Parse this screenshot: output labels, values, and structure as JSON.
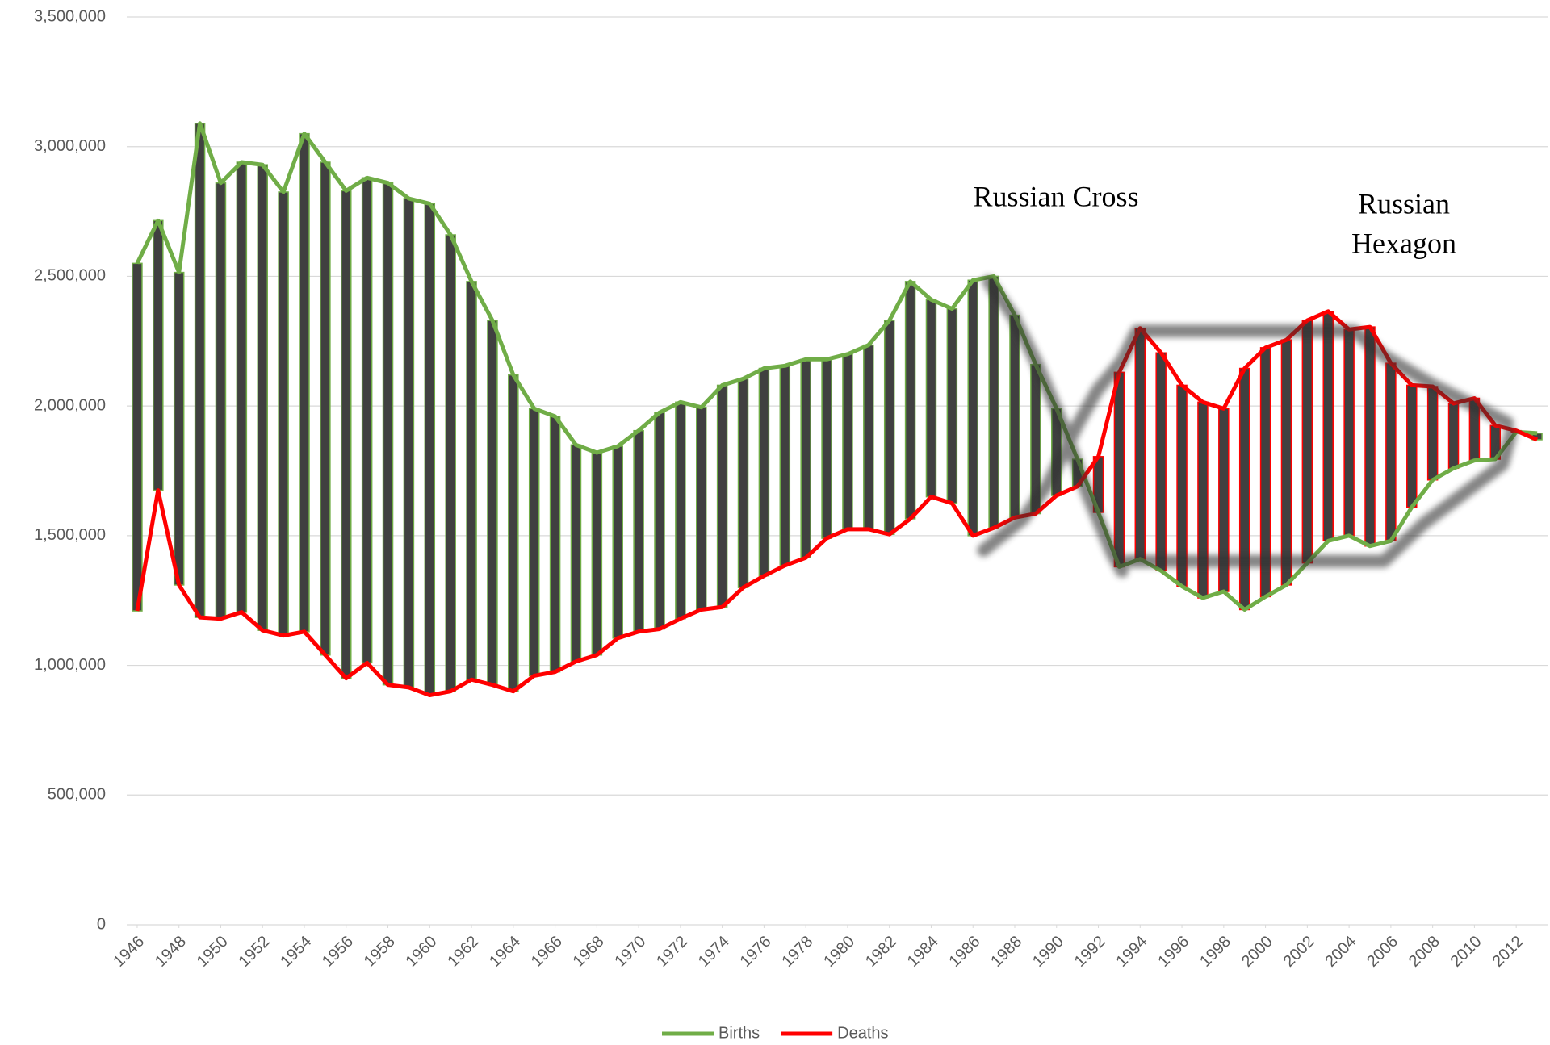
{
  "chart_data": {
    "type": "line",
    "x": [
      1946,
      1947,
      1948,
      1949,
      1950,
      1951,
      1952,
      1953,
      1954,
      1955,
      1956,
      1957,
      1958,
      1959,
      1960,
      1961,
      1962,
      1963,
      1964,
      1965,
      1966,
      1967,
      1968,
      1969,
      1970,
      1971,
      1972,
      1973,
      1974,
      1975,
      1976,
      1977,
      1978,
      1979,
      1980,
      1981,
      1982,
      1983,
      1984,
      1985,
      1986,
      1987,
      1988,
      1989,
      1990,
      1991,
      1992,
      1993,
      1994,
      1995,
      1996,
      1997,
      1998,
      1999,
      2000,
      2001,
      2002,
      2003,
      2004,
      2005,
      2006,
      2007,
      2008,
      2009,
      2010,
      2011,
      2012,
      2013
    ],
    "xlim": [
      1945.5,
      2013.5
    ],
    "xticks": [
      1946,
      1948,
      1950,
      1952,
      1954,
      1956,
      1958,
      1960,
      1962,
      1964,
      1966,
      1968,
      1970,
      1972,
      1974,
      1976,
      1978,
      1980,
      1982,
      1984,
      1986,
      1988,
      1990,
      1992,
      1994,
      1996,
      1998,
      2000,
      2002,
      2004,
      2006,
      2008,
      2010,
      2012
    ],
    "series": [
      {
        "name": "Births",
        "color": "#70ad47",
        "values": [
          2550000,
          2715000,
          2515000,
          3090000,
          2860000,
          2940000,
          2930000,
          2825000,
          3050000,
          2940000,
          2830000,
          2880000,
          2860000,
          2800000,
          2780000,
          2660000,
          2480000,
          2330000,
          2120000,
          1990000,
          1960000,
          1850000,
          1820000,
          1845000,
          1905000,
          1975000,
          2015000,
          1995000,
          2080000,
          2105000,
          2145000,
          2155000,
          2180000,
          2180000,
          2200000,
          2235000,
          2330000,
          2480000,
          2410000,
          2375000,
          2485000,
          2500000,
          2350000,
          2160000,
          1990000,
          1795000,
          1590000,
          1380000,
          1410000,
          1365000,
          1305000,
          1260000,
          1285000,
          1215000,
          1265000,
          1310000,
          1395000,
          1480000,
          1500000,
          1460000,
          1480000,
          1610000,
          1715000,
          1760000,
          1790000,
          1795000,
          1900000,
          1895000
        ]
      },
      {
        "name": "Deaths",
        "color": "#ff0000",
        "values": [
          1210000,
          1675000,
          1310000,
          1185000,
          1180000,
          1205000,
          1135000,
          1115000,
          1130000,
          1040000,
          950000,
          1010000,
          925000,
          915000,
          885000,
          900000,
          945000,
          925000,
          900000,
          960000,
          975000,
          1015000,
          1040000,
          1105000,
          1130000,
          1140000,
          1180000,
          1215000,
          1225000,
          1300000,
          1345000,
          1385000,
          1415000,
          1490000,
          1525000,
          1525000,
          1505000,
          1565000,
          1650000,
          1625000,
          1500000,
          1530000,
          1570000,
          1585000,
          1655000,
          1690000,
          1805000,
          2130000,
          2300000,
          2205000,
          2080000,
          2015000,
          1990000,
          2145000,
          2225000,
          2255000,
          2330000,
          2365000,
          2295000,
          2305000,
          2165000,
          2080000,
          2075000,
          2010000,
          2030000,
          1925000,
          1905000,
          1870000
        ]
      }
    ],
    "ylim": [
      0,
      3500000
    ],
    "yticks": [
      0,
      {
        "value": 500000,
        "label": "500,000"
      },
      {
        "value": 1000000,
        "label": "1,000,000"
      },
      {
        "value": 1500000,
        "label": "1,500,000"
      },
      {
        "value": 2000000,
        "label": "2,000,000"
      },
      {
        "value": 2500000,
        "label": "2,500,000"
      },
      {
        "value": 3000000,
        "label": "3,000,000"
      },
      {
        "value": 3500000,
        "label": "3,500,000"
      }
    ],
    "grid": true,
    "high_low_bars": true,
    "bar_color": "#404040",
    "legend": "bottom",
    "annotations": [
      [
        "Russian Cross"
      ],
      [
        "Russian",
        "Hexagon"
      ]
    ]
  }
}
